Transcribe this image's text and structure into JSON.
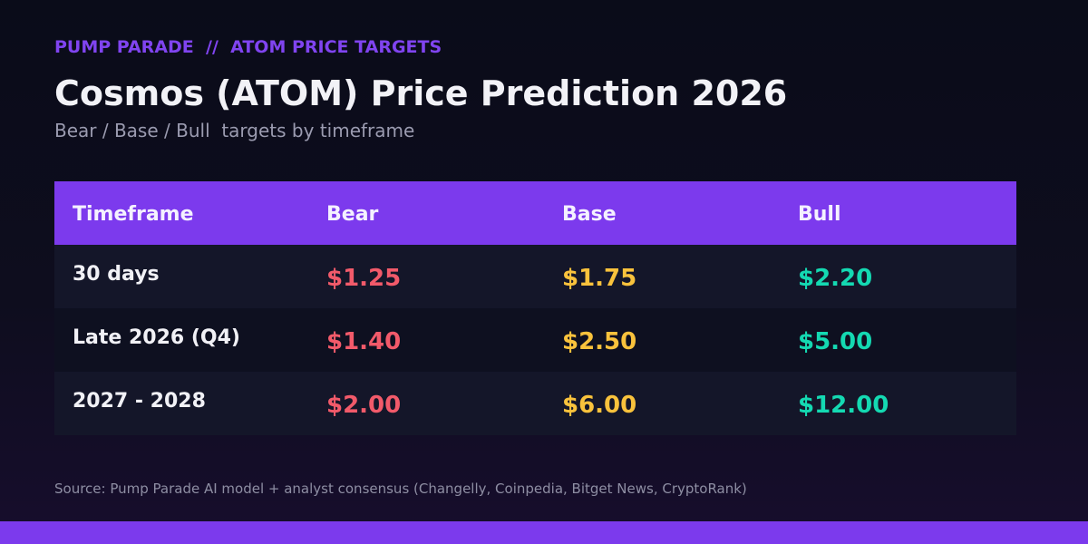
{
  "header": {
    "kicker": "PUMP PARADE  //  ATOM PRICE TARGETS",
    "title": "Cosmos (ATOM) Price Prediction 2026",
    "subtitle": "Bear / Base / Bull  targets by timeframe"
  },
  "colors": {
    "accent": "#7c3aed",
    "bear": "#f25a6a",
    "base": "#f9c23c",
    "bull": "#14d9b2"
  },
  "chart_data": {
    "type": "table",
    "columns": [
      "Timeframe",
      "Bear",
      "Base",
      "Bull"
    ],
    "rows": [
      {
        "timeframe": "30 days",
        "bear": "$1.25",
        "base": "$1.75",
        "bull": "$2.20"
      },
      {
        "timeframe": "Late 2026 (Q4)",
        "bear": "$1.40",
        "base": "$2.50",
        "bull": "$5.00"
      },
      {
        "timeframe": "2027 - 2028",
        "bear": "$2.00",
        "base": "$6.00",
        "bull": "$12.00"
      }
    ]
  },
  "footer": {
    "source": "Source: Pump Parade AI model + analyst consensus (Changelly, Coinpedia, Bitget News, CryptoRank)"
  }
}
